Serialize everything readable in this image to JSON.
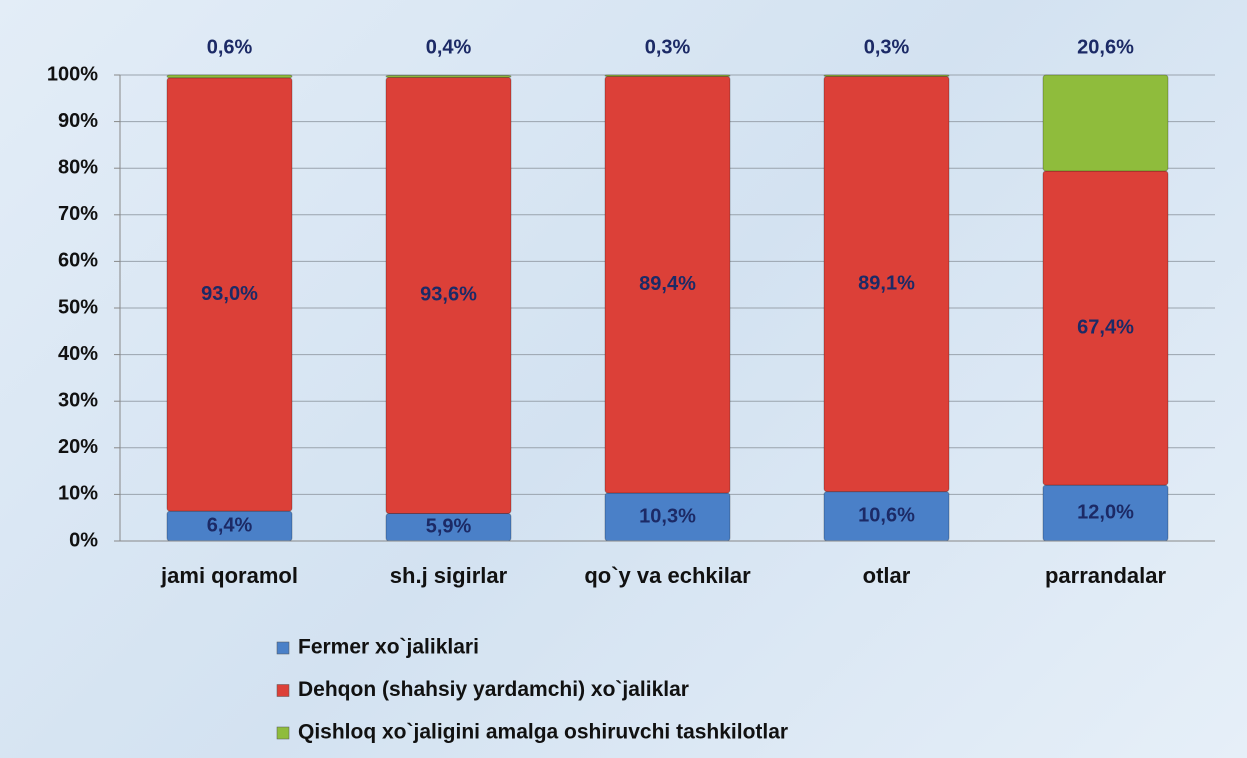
{
  "chart_data": {
    "type": "stacked_bar",
    "categories": [
      "jami qoramol",
      "sh.j sigirlar",
      "qo`y va echkilar",
      "otlar",
      "parrandalar"
    ],
    "series": [
      {
        "name": "Fermer xo`jaliklari",
        "color": "#4a80c8",
        "values": [
          6.4,
          5.9,
          10.3,
          10.6,
          12.0
        ],
        "value_labels": [
          "6,4%",
          "5,9%",
          "10,3%",
          "10,6%",
          "12,0%"
        ]
      },
      {
        "name": "Dehqon (shahsiy yardamchi) xo`jaliklar",
        "color": "#dc4038",
        "values": [
          93.0,
          93.6,
          89.4,
          89.1,
          67.4
        ],
        "value_labels": [
          "93,0%",
          "93,6%",
          "89,4%",
          "89,1%",
          "67,4%"
        ]
      },
      {
        "name": "Qishloq xo`jaligini amalga oshiruvchi tashkilotlar",
        "color": "#8fbc3c",
        "values": [
          0.6,
          0.4,
          0.3,
          0.3,
          20.6
        ],
        "value_labels": [
          "0,6%",
          "0,4%",
          "0,3%",
          "0,3%",
          "20,6%"
        ]
      }
    ],
    "ylim": [
      0,
      100
    ],
    "yticks": [
      {
        "value": 0,
        "label": "0%"
      },
      {
        "value": 10,
        "label": "10%"
      },
      {
        "value": 20,
        "label": "20%"
      },
      {
        "value": 30,
        "label": "30%"
      },
      {
        "value": 40,
        "label": "40%"
      },
      {
        "value": 50,
        "label": "50%"
      },
      {
        "value": 60,
        "label": "60%"
      },
      {
        "value": 70,
        "label": "70%"
      },
      {
        "value": 80,
        "label": "80%"
      },
      {
        "value": 90,
        "label": "90%"
      },
      {
        "value": 100,
        "label": "100%"
      }
    ],
    "grid": true
  }
}
